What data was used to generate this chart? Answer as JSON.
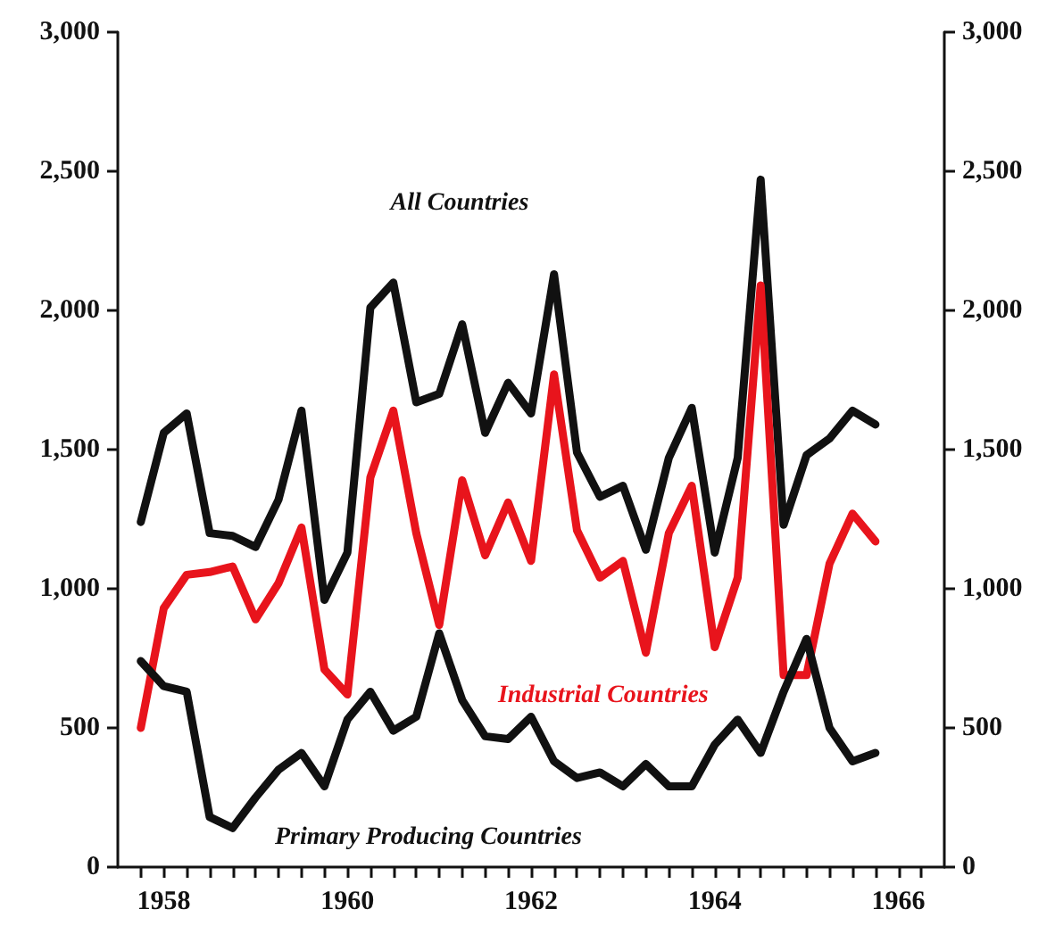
{
  "chart_data": {
    "type": "line",
    "marker": "none",
    "line_style": "solid",
    "grid": false,
    "legend": false,
    "x": [
      1957.75,
      1958,
      1958.25,
      1958.5,
      1958.75,
      1959,
      1959.25,
      1959.5,
      1959.75,
      1960,
      1960.25,
      1960.5,
      1960.75,
      1961,
      1961.25,
      1961.5,
      1961.75,
      1962,
      1962.25,
      1962.5,
      1962.75,
      1963,
      1963.25,
      1963.5,
      1963.75,
      1964,
      1964.25,
      1964.5,
      1964.75,
      1965,
      1965.25,
      1965.5,
      1965.75
    ],
    "series": [
      {
        "name": "All Countries",
        "color": "#111111",
        "values": [
          1240,
          1560,
          1630,
          1200,
          1190,
          1150,
          1320,
          1640,
          960,
          1130,
          2010,
          2100,
          1670,
          1700,
          1950,
          1560,
          1740,
          1630,
          2130,
          1490,
          1330,
          1370,
          1140,
          1470,
          1650,
          1130,
          1470,
          2470,
          1230,
          1480,
          1540,
          1640,
          1590
        ]
      },
      {
        "name": "Industrial Countries",
        "color": "#e8141c",
        "values": [
          500,
          930,
          1050,
          1060,
          1080,
          890,
          1020,
          1220,
          710,
          620,
          1400,
          1640,
          1200,
          870,
          1390,
          1120,
          1310,
          1100,
          1770,
          1210,
          1040,
          1100,
          770,
          1200,
          1370,
          790,
          1040,
          2090,
          690,
          690,
          1090,
          1270,
          1170
        ]
      },
      {
        "name": "Primary Producing Countries",
        "color": "#111111",
        "values": [
          740,
          650,
          630,
          180,
          140,
          250,
          350,
          410,
          290,
          530,
          630,
          490,
          540,
          840,
          600,
          470,
          460,
          540,
          380,
          320,
          340,
          290,
          370,
          290,
          290,
          440,
          530,
          410,
          630,
          820,
          500,
          380,
          410
        ]
      }
    ],
    "xlim": [
      1957.5,
      1966.5
    ],
    "xticks": [
      {
        "value": 1957.75,
        "label": null
      },
      1958,
      {
        "value": 1958.25,
        "label": null
      },
      {
        "value": 1958.5,
        "label": null
      },
      {
        "value": 1958.75,
        "label": null
      },
      {
        "value": 1959,
        "label": null
      },
      {
        "value": 1959.25,
        "label": null
      },
      {
        "value": 1959.5,
        "label": null
      },
      {
        "value": 1959.75,
        "label": null
      },
      1960,
      {
        "value": 1960.25,
        "label": null
      },
      {
        "value": 1960.5,
        "label": null
      },
      {
        "value": 1960.75,
        "label": null
      },
      {
        "value": 1961,
        "label": null
      },
      {
        "value": 1961.25,
        "label": null
      },
      {
        "value": 1961.5,
        "label": null
      },
      {
        "value": 1961.75,
        "label": null
      },
      1962,
      {
        "value": 1962.25,
        "label": null
      },
      {
        "value": 1962.5,
        "label": null
      },
      {
        "value": 1962.75,
        "label": null
      },
      {
        "value": 1963,
        "label": null
      },
      {
        "value": 1963.25,
        "label": null
      },
      {
        "value": 1963.5,
        "label": null
      },
      {
        "value": 1963.75,
        "label": null
      },
      1964,
      {
        "value": 1964.25,
        "label": null
      },
      {
        "value": 1964.5,
        "label": null
      },
      {
        "value": 1964.75,
        "label": null
      },
      {
        "value": 1965,
        "label": null
      },
      {
        "value": 1965.25,
        "label": null
      },
      {
        "value": 1965.5,
        "label": null
      },
      {
        "value": 1965.75,
        "label": null
      },
      1966,
      {
        "value": 1966.25,
        "label": null
      }
    ],
    "ylim": [
      0,
      3000
    ],
    "yticks": [
      0,
      500,
      {
        "value": 1000,
        "label": "1,000"
      },
      {
        "value": 1500,
        "label": "1,500"
      },
      {
        "value": 2000,
        "label": "2,000"
      },
      {
        "value": 2500,
        "label": "2,500"
      },
      {
        "value": 3000,
        "label": "3,000"
      }
    ],
    "y2lim": [
      0,
      3000
    ],
    "y2ticks": [
      0,
      500,
      {
        "value": 1000,
        "label": "1,000"
      },
      {
        "value": 1500,
        "label": "1,500"
      },
      {
        "value": 2000,
        "label": "2,000"
      },
      {
        "value": 2500,
        "label": "2,500"
      },
      {
        "value": 3000,
        "label": "3,000"
      }
    ]
  }
}
